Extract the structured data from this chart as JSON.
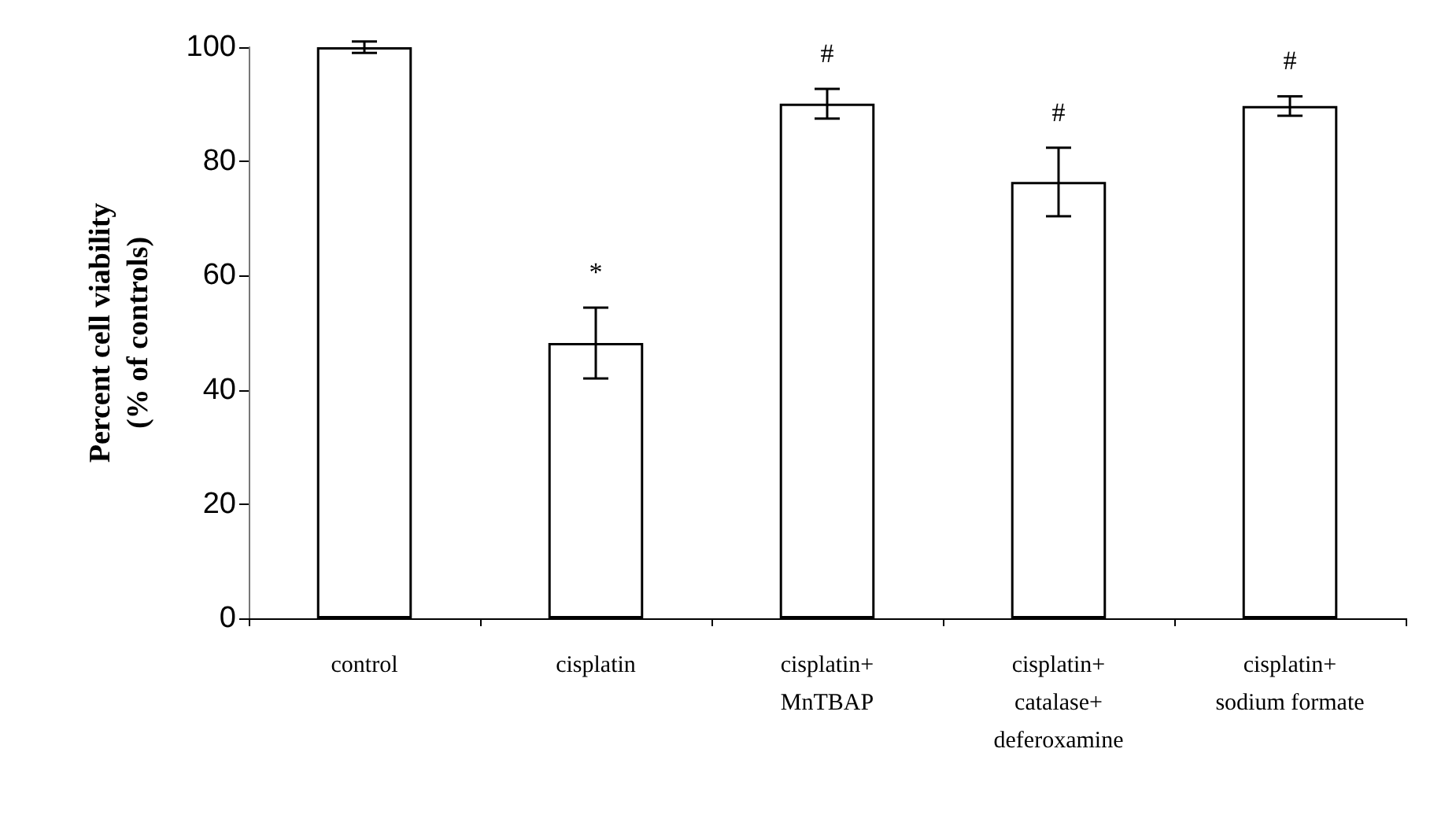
{
  "chart_data": {
    "type": "bar",
    "ylabel": "Percent cell viability\n(% of controls)",
    "categories": [
      "control",
      "cisplatin",
      "cisplatin+\nMnTBAP",
      "cisplatin+\ncatalase+\ndeferoxamine",
      "cisplatin+\nsodium formate"
    ],
    "values": [
      100,
      48.2,
      90.1,
      76.4,
      89.7
    ],
    "errors": [
      1,
      6.2,
      2.6,
      6,
      1.7
    ],
    "color": "#ffffff",
    "value_labels": [
      null,
      "*",
      "#",
      "#",
      "#"
    ],
    "ylim": [
      0,
      100
    ],
    "yticks": [
      0,
      20,
      40,
      60,
      80,
      100
    ],
    "grid": false
  }
}
